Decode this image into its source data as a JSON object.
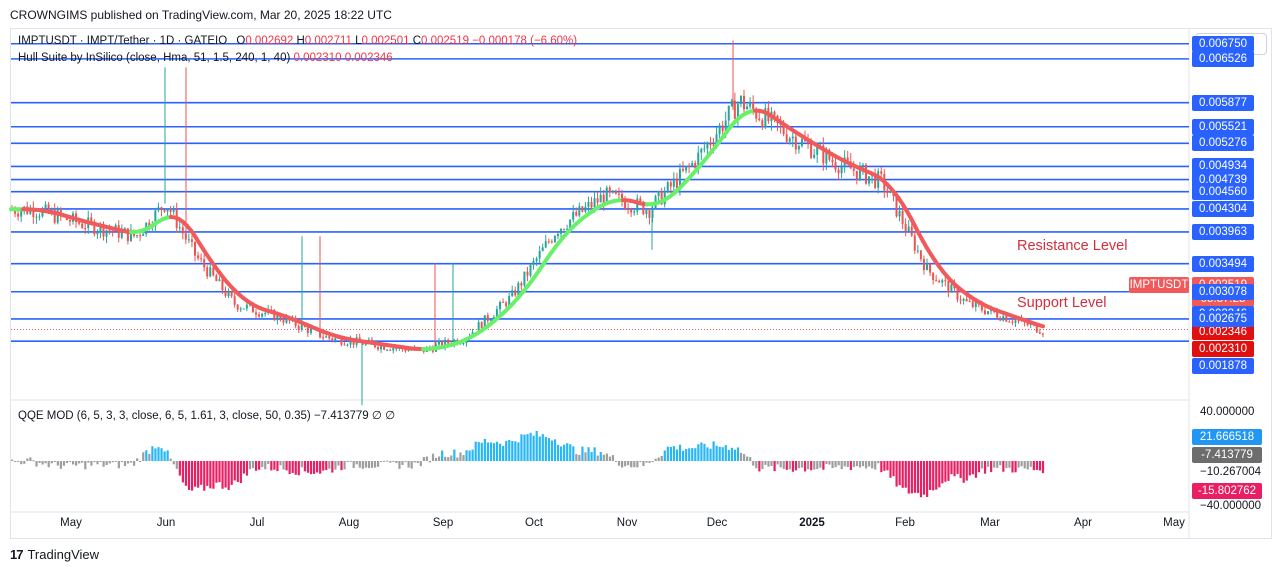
{
  "header": {
    "published_text": "CROWNGIMS published on TradingView.com, Mar 20, 2025 18:22 UTC"
  },
  "legend": {
    "symbol_line": "IMPTUSDT · IMPT/Tether · 1D · GATEIO",
    "open_label": "O",
    "open_value": "0.002692",
    "high_label": "H",
    "high_value": "0.002711",
    "low_label": "L",
    "low_value": "0.002501",
    "close_label": "C",
    "close_value": "0.002519",
    "change": "−0.000178 (−6.60%)",
    "indicator": "Hull Suite by InSilico (close, Hma, 51, 1.5, 240, 1, 40)",
    "indicator_v1": "0.002310",
    "indicator_v2": "0.002346"
  },
  "currency_button": "USDT",
  "annotations": {
    "resistance": "Resistance Level",
    "support": "Support Level"
  },
  "price_tags": {
    "symbol": "IMPTUSDT",
    "last_price": "0.002519",
    "countdown": "05:37:25",
    "hull_a": "0.002346",
    "hull_b": "0.002346",
    "hull_c": "0.002310",
    "bottom": "0.001878"
  },
  "oscillator": {
    "legend": "QQE MOD (6, 5, 3, 3, close, 6, 5, 1.61, 3, close, 50, 0.35)",
    "legend_value": "−7.413779",
    "axis_top": "40.000000",
    "val_blue": "21.666518",
    "val_gray": "-7.413779",
    "val_plain": "−10.267004",
    "val_red": "-15.802762",
    "axis_bottom": "−40.000000"
  },
  "footer": {
    "brand": "TradingView"
  },
  "colors": {
    "level_line": "#2962ff",
    "bull": "#26a69a",
    "bear": "#ef5350",
    "hull_up": "#69f06a",
    "hull_down": "#f05a5a",
    "hist_blue": "#29b6f6",
    "hist_pink": "#e91e63",
    "hist_gray": "#9e9e9e"
  },
  "chart_data": {
    "type": "candlestick",
    "symbol": "IMPTUSDT",
    "timeframe": "1D",
    "exchange": "GATEIO",
    "x_labels": [
      "May",
      "Jun",
      "Jul",
      "Aug",
      "Sep",
      "Oct",
      "Nov",
      "Dec",
      "2025",
      "Feb",
      "Mar",
      "Apr",
      "May"
    ],
    "horizontal_levels": [
      0.00675,
      0.006526,
      0.005877,
      0.005521,
      0.005276,
      0.004934,
      0.004739,
      0.00456,
      0.004304,
      0.003963,
      0.003494,
      0.003078,
      0.002675,
      0.002346
    ],
    "ylim": [
      0.0017,
      0.0069
    ],
    "price_path": [
      [
        "May",
        0.0043
      ],
      [
        "May",
        0.0041
      ],
      [
        "Jun",
        0.0039
      ],
      [
        "Jun",
        0.0044
      ],
      [
        "Jun",
        0.0036
      ],
      [
        "Jul",
        0.0029
      ],
      [
        "Jul",
        0.0027
      ],
      [
        "Aug",
        0.0024
      ],
      [
        "Aug",
        0.0023
      ],
      [
        "Sep",
        0.0022
      ],
      [
        "Sep",
        0.0024
      ],
      [
        "Oct",
        0.003
      ],
      [
        "Oct",
        0.004
      ],
      [
        "Nov",
        0.0045
      ],
      [
        "Nov",
        0.0043
      ],
      [
        "Dec",
        0.005
      ],
      [
        "Dec",
        0.0059
      ],
      [
        "2025",
        0.0054
      ],
      [
        "2025",
        0.005
      ],
      [
        "Feb",
        0.0047
      ],
      [
        "Feb",
        0.0034
      ],
      [
        "Mar",
        0.0029
      ],
      [
        "Mar",
        0.0025
      ]
    ],
    "last": {
      "open": 0.002692,
      "high": 0.002711,
      "low": 0.002501,
      "close": 0.002519
    },
    "oscillator": {
      "name": "QQE MOD",
      "ylim": [
        -40,
        40
      ],
      "markers": [
        21.666518,
        -7.413779,
        -10.267004,
        -15.802762
      ]
    }
  }
}
